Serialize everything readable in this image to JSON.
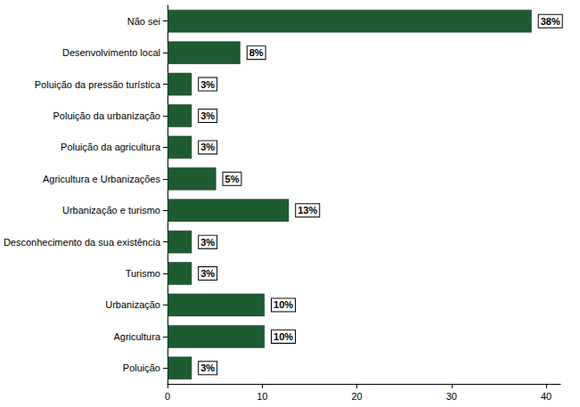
{
  "chart_data": {
    "type": "bar",
    "orientation": "horizontal",
    "categories": [
      "Não sei",
      "Desenvolvimento local",
      "Poluição da pressão turística",
      "Poluição da urbanização",
      "Poluição da agricultura",
      "Agricultura e Urbanizações",
      "Urbanização e turismo",
      "Desconhecimento da sua existência",
      "Turismo",
      "Urbanização",
      "Agricultura",
      "Poluição"
    ],
    "values": [
      38.46,
      7.69,
      2.56,
      2.56,
      2.56,
      5.13,
      12.82,
      2.56,
      2.56,
      10.26,
      10.26,
      2.56
    ],
    "value_labels": [
      "38%",
      "8%",
      "3%",
      "3%",
      "3%",
      "5%",
      "13%",
      "3%",
      "3%",
      "10%",
      "10%",
      "3%"
    ],
    "color": "#1e5b32",
    "xlim": [
      0,
      41.5
    ],
    "xticks": [
      0,
      10,
      20,
      30,
      40
    ],
    "grid": false,
    "data_labels": true
  }
}
